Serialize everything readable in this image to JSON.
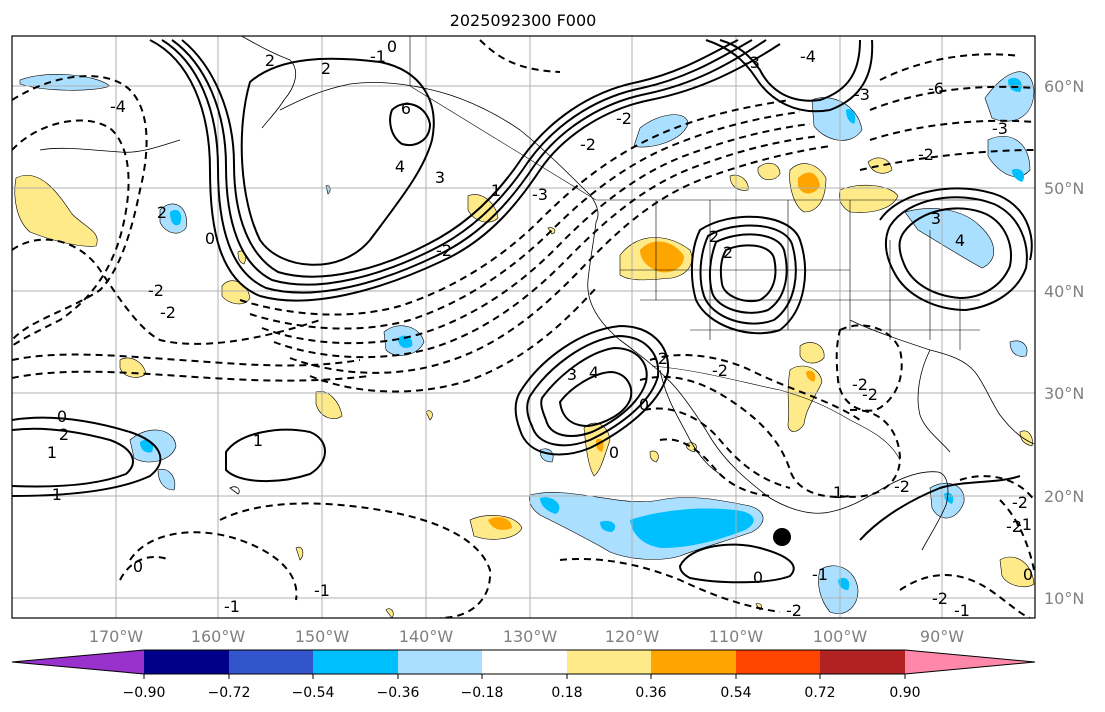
{
  "title": "2025092300 F000",
  "map": {
    "lat_labels": [
      "60°N",
      "50°N",
      "40°N",
      "30°N",
      "20°N",
      "10°N"
    ],
    "lon_labels": [
      "170°W",
      "160°W",
      "150°W",
      "140°W",
      "130°W",
      "120°W",
      "110°W",
      "100°W",
      "90°W"
    ],
    "contour_labels": [
      "2",
      "2",
      "-1",
      "0",
      "6",
      "4",
      "3",
      "-4",
      "2",
      "0",
      "-3",
      "-2",
      "-2",
      "-2",
      "-2",
      "-2",
      "2",
      "2",
      "3",
      "4",
      "-2",
      "0",
      "-2",
      "0",
      "0",
      "1",
      "-1",
      "2",
      "1",
      "0",
      "0",
      "-1",
      "-1",
      "1",
      "-2",
      "-3",
      "-4",
      "-6",
      "-3",
      "-3",
      "-2",
      "3",
      "4",
      "-2",
      "-2",
      "-2",
      "-1",
      "-2",
      "0",
      "-1",
      "-2",
      "-1",
      "-2",
      "1"
    ],
    "marker": "storm-center-dot"
  },
  "colorbar": {
    "colors": [
      "#9932cc",
      "#00008b",
      "#3355cc",
      "#00bfff",
      "#aadfff",
      "#ffffff",
      "#ffea8a",
      "#ffa500",
      "#ff4500",
      "#b22222",
      "#ff88aa"
    ],
    "tick_labels": [
      "−0.90",
      "−0.72",
      "−0.54",
      "−0.36",
      "−0.18",
      "0.18",
      "0.36",
      "0.54",
      "0.72",
      "0.90"
    ]
  }
}
